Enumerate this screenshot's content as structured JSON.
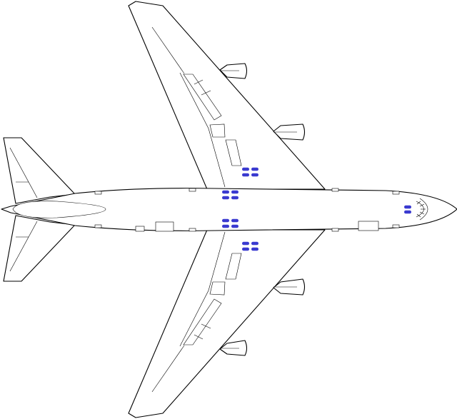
{
  "diagram": {
    "subject": "airplane-top-view",
    "colors": {
      "outline": "#000000",
      "fill": "#ffffff",
      "landing_gear_wheels": "#3a3ad0"
    },
    "components": {
      "engines": 4,
      "landing_gear_wheels": 20
    }
  }
}
